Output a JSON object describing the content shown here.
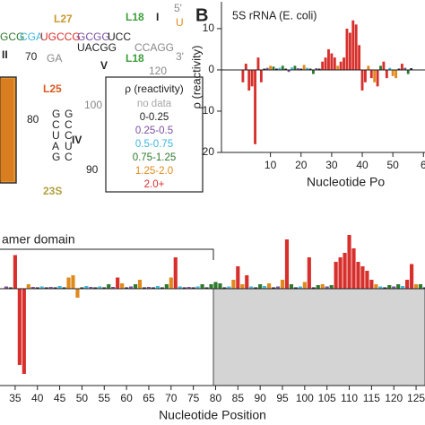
{
  "panel_label": "B",
  "structure": {
    "labels": [
      "L27",
      "L18",
      "I",
      "5'",
      "U",
      "GCG",
      "CGA",
      "UGCCG",
      "GCGG",
      "UCC",
      "CCAGG",
      "UACGG",
      "GA",
      "3'",
      "L18",
      "120",
      "V",
      "70",
      "II",
      "L25",
      "100",
      "80",
      "IV",
      "90",
      "23S",
      "G",
      "C",
      "U",
      "A",
      "G",
      "G",
      "C",
      "C",
      "U",
      "C"
    ]
  },
  "legend": {
    "title": "ρ (reactivity)",
    "items": [
      {
        "label": "no data",
        "color": "#a8a8a8"
      },
      {
        "label": "0-0.25",
        "color": "#222222"
      },
      {
        "label": "0.25-0.5",
        "color": "#7c4fa0"
      },
      {
        "label": "0.5-0.75",
        "color": "#3fb6dc"
      },
      {
        "label": "0.75-1.25",
        "color": "#2f7a2f"
      },
      {
        "label": "1.25-2.0",
        "color": "#e08a1e"
      },
      {
        "label": "2.0+",
        "color": "#d7302c"
      }
    ]
  },
  "chart_data": [
    {
      "type": "bar",
      "title": "5S rRNA (E. coli)",
      "ylabel": "ρ (reactivity)",
      "xlabel": "Nucleotide Po",
      "x": [
        1,
        2,
        3,
        4,
        5,
        6,
        7,
        8,
        9,
        10,
        11,
        12,
        13,
        14,
        15,
        16,
        17,
        18,
        19,
        20,
        21,
        22,
        23,
        24,
        25,
        26,
        27,
        28,
        29,
        30,
        31,
        32,
        33,
        34,
        35,
        36,
        37,
        38,
        39,
        40,
        41,
        42,
        43,
        44,
        45,
        46,
        47,
        48,
        49,
        50,
        51,
        52,
        53,
        54,
        55,
        56
      ],
      "values": [
        -3,
        1.5,
        -5,
        -4,
        -18,
        3,
        -3,
        0.3,
        0.5,
        1,
        0.8,
        0.3,
        0.5,
        1,
        0.3,
        -0.5,
        0.6,
        1,
        0.4,
        0.3,
        1.2,
        0.5,
        0.3,
        -1,
        0.4,
        0.3,
        2,
        3,
        5,
        4,
        3,
        1,
        2,
        3,
        10,
        9,
        12,
        11,
        6,
        -5,
        -3,
        1,
        -2,
        -3,
        -4,
        1,
        2,
        -2,
        0.5,
        -1.5,
        -2,
        0.3,
        1.5,
        0.5,
        -1,
        0.4
      ],
      "colors": [
        "#d7302c",
        "#d7302c",
        "#d7302c",
        "#d7302c",
        "#d7302c",
        "#d7302c",
        "#d7302c",
        "#222222",
        "#7c4fa0",
        "#e08a1e",
        "#2f7a2f",
        "#222222",
        "#3fb6dc",
        "#2f7a2f",
        "#222222",
        "#7c4fa0",
        "#3fb6dc",
        "#2f7a2f",
        "#7c4fa0",
        "#222222",
        "#e08a1e",
        "#3fb6dc",
        "#222222",
        "#2f7a2f",
        "#7c4fa0",
        "#222222",
        "#d7302c",
        "#d7302c",
        "#d7302c",
        "#d7302c",
        "#d7302c",
        "#e08a1e",
        "#d7302c",
        "#d7302c",
        "#d7302c",
        "#d7302c",
        "#d7302c",
        "#d7302c",
        "#d7302c",
        "#d7302c",
        "#d7302c",
        "#e08a1e",
        "#d7302c",
        "#e08a1e",
        "#d7302c",
        "#2f7a2f",
        "#d7302c",
        "#d7302c",
        "#3fb6dc",
        "#e08a1e",
        "#e08a1e",
        "#222222",
        "#d7302c",
        "#7c4fa0",
        "#2f7a2f",
        "#222222"
      ],
      "xlim": [
        -6,
        60.5
      ],
      "xticks": [
        10,
        20,
        30,
        40,
        50,
        {
          "value": 60,
          "label": "6"
        }
      ],
      "ylim": [
        -20,
        16.5
      ],
      "yticks": [
        10,
        0,
        {
          "value": -10,
          "label": "10"
        },
        {
          "value": -20,
          "label": "20"
        }
      ]
    },
    {
      "type": "bar",
      "xlabel": "Nucleotide Position",
      "annotation": {
        "text": "amer domain",
        "xlim": [
          31.6,
          79.5
        ]
      },
      "shade": {
        "xlim": [
          79.5,
          127
        ],
        "ylim": [
          -21.6,
          0
        ],
        "color": "#d4d4d4"
      },
      "x": [
        33,
        34,
        35,
        36,
        37,
        38,
        39,
        40,
        41,
        42,
        43,
        44,
        45,
        46,
        47,
        48,
        49,
        50,
        51,
        52,
        53,
        54,
        55,
        56,
        57,
        58,
        59,
        60,
        61,
        62,
        63,
        64,
        65,
        66,
        67,
        68,
        69,
        70,
        71,
        72,
        73,
        74,
        75,
        76,
        77,
        78,
        79,
        80,
        81,
        82,
        83,
        84,
        85,
        86,
        87,
        88,
        89,
        90,
        91,
        92,
        93,
        94,
        95,
        96,
        97,
        98,
        99,
        100,
        101,
        102,
        103,
        104,
        105,
        106,
        107,
        108,
        109,
        110,
        111,
        112,
        113,
        114,
        115,
        116,
        117,
        118,
        119,
        120,
        121,
        122,
        123,
        124,
        125,
        126,
        127
      ],
      "values": [
        0.5,
        0.3,
        7.5,
        -17,
        -19,
        1,
        0.4,
        0.3,
        0.5,
        0.3,
        0.4,
        0.3,
        0.6,
        0.3,
        2.5,
        3,
        -2,
        0.3,
        0.6,
        0.4,
        0.3,
        0.5,
        0.3,
        1,
        0.4,
        2.5,
        1.2,
        0.3,
        0.5,
        1,
        2,
        0.3,
        0.4,
        0.3,
        0.6,
        0.3,
        1,
        2.5,
        7,
        0.5,
        0.3,
        0.4,
        0.3,
        0.5,
        1,
        0.3,
        1,
        1.5,
        1.2,
        0.3,
        0.5,
        2,
        5,
        1,
        3,
        0.5,
        0.3,
        1,
        0.6,
        1.2,
        0.3,
        0.5,
        2,
        11,
        1,
        0.3,
        0.5,
        1.5,
        7,
        0.3,
        0.8,
        1,
        0.5,
        0.8,
        6,
        7,
        8,
        12,
        9,
        6,
        5,
        4,
        2,
        1,
        0.5,
        0.3,
        0.8,
        0.5,
        1,
        0.6,
        2,
        5.5,
        1,
        1,
        0.3
      ],
      "colors": [
        "#7c4fa0",
        "#222222",
        "#d7302c",
        "#d7302c",
        "#d7302c",
        "#e08a1e",
        "#7c4fa0",
        "#222222",
        "#3fb6dc",
        "#222222",
        "#7c4fa0",
        "#222222",
        "#3fb6dc",
        "#222222",
        "#e08a1e",
        "#e08a1e",
        "#e08a1e",
        "#222222",
        "#3fb6dc",
        "#7c4fa0",
        "#222222",
        "#3fb6dc",
        "#222222",
        "#2f7a2f",
        "#7c4fa0",
        "#d7302c",
        "#e08a1e",
        "#222222",
        "#7c4fa0",
        "#2f7a2f",
        "#e08a1e",
        "#222222",
        "#7c4fa0",
        "#222222",
        "#3fb6dc",
        "#222222",
        "#2f7a2f",
        "#e08a1e",
        "#d7302c",
        "#3fb6dc",
        "#222222",
        "#7c4fa0",
        "#222222",
        "#3fb6dc",
        "#2f7a2f",
        "#222222",
        "#2f7a2f",
        "#2f7a2f",
        "#2f7a2f",
        "#222222",
        "#3fb6dc",
        "#e08a1e",
        "#d7302c",
        "#e08a1e",
        "#d7302c",
        "#3fb6dc",
        "#222222",
        "#2f7a2f",
        "#3fb6dc",
        "#e08a1e",
        "#222222",
        "#7c4fa0",
        "#e08a1e",
        "#d7302c",
        "#2f7a2f",
        "#222222",
        "#3fb6dc",
        "#e08a1e",
        "#d7302c",
        "#222222",
        "#2f7a2f",
        "#e08a1e",
        "#7c4fa0",
        "#2f7a2f",
        "#d7302c",
        "#d7302c",
        "#d7302c",
        "#d7302c",
        "#d7302c",
        "#d7302c",
        "#d7302c",
        "#d7302c",
        "#d7302c",
        "#e08a1e",
        "#3fb6dc",
        "#222222",
        "#2f7a2f",
        "#7c4fa0",
        "#2f7a2f",
        "#3fb6dc",
        "#d7302c",
        "#d7302c",
        "#e08a1e",
        "#2f7a2f",
        "#222222"
      ],
      "xlim": [
        31.6,
        127
      ],
      "xticks": [
        35,
        40,
        45,
        50,
        55,
        60,
        65,
        70,
        75,
        80,
        85,
        90,
        95,
        100,
        105,
        110,
        115,
        120,
        125
      ],
      "ylim": [
        -21.6,
        12
      ]
    }
  ]
}
